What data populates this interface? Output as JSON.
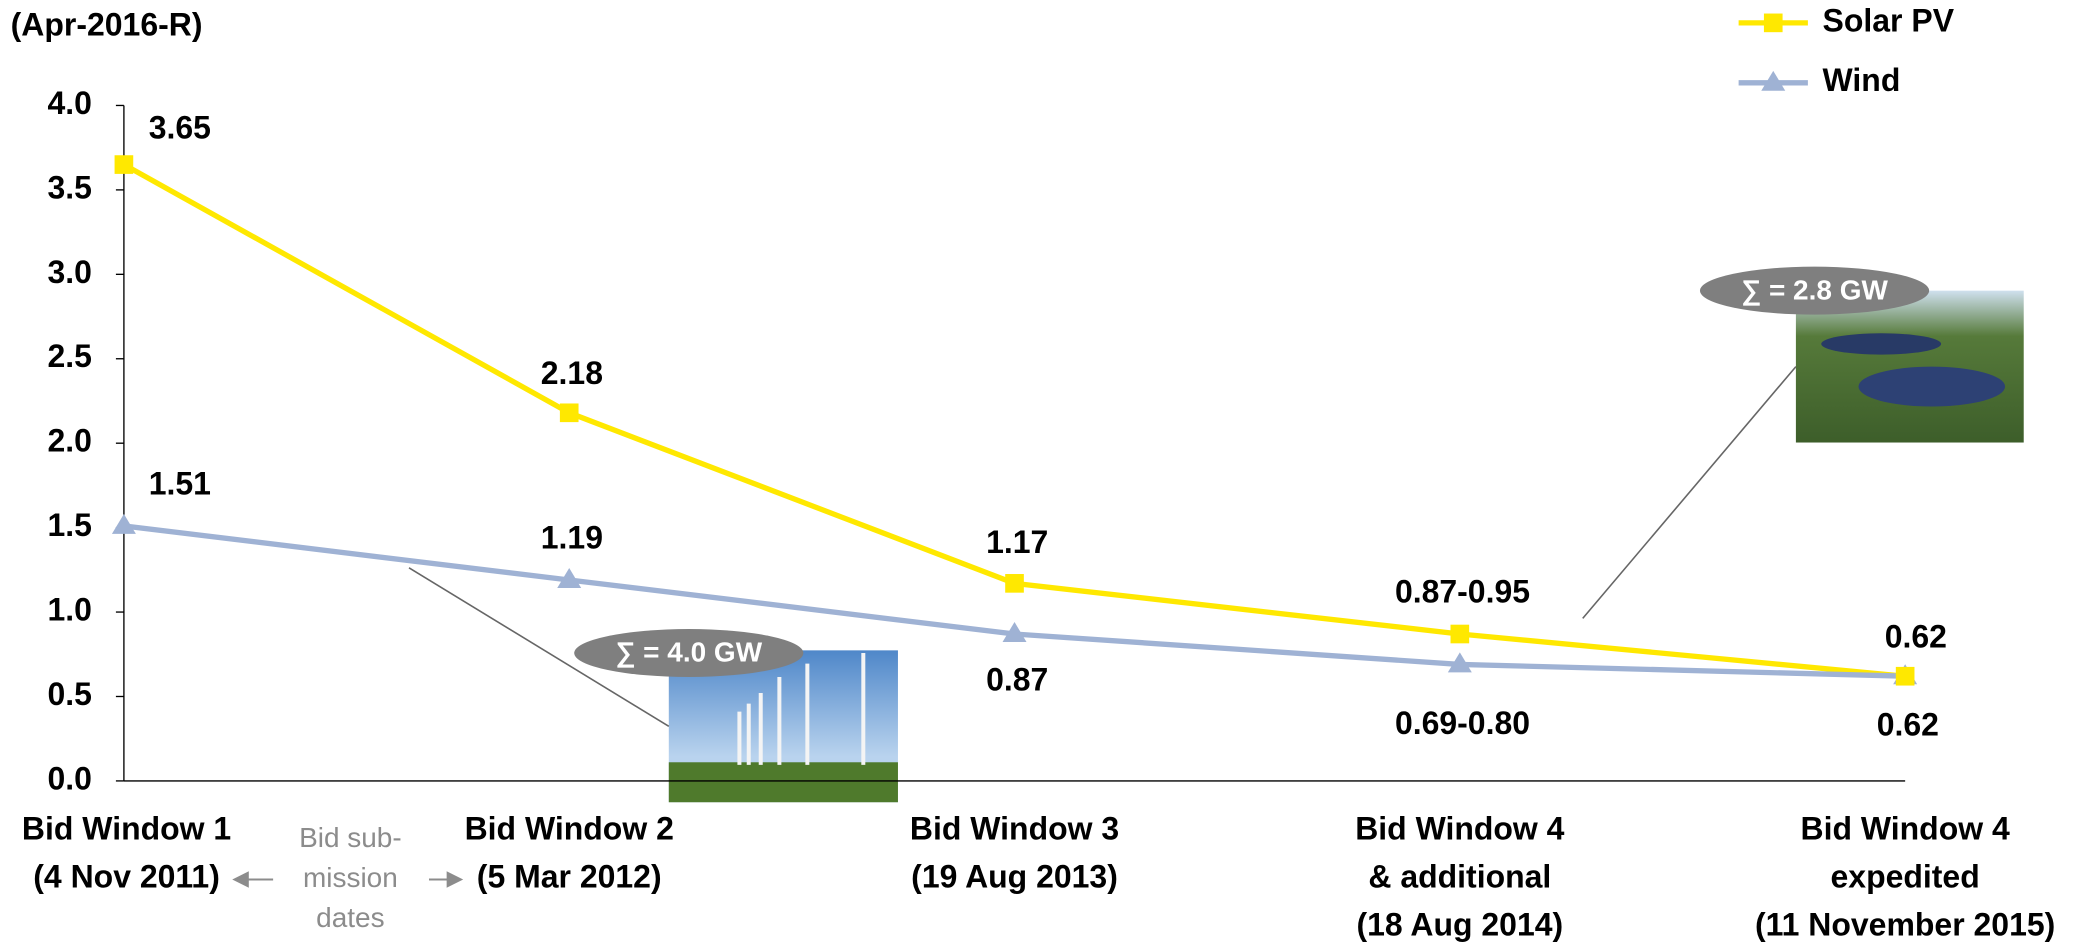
{
  "chart_data": {
    "type": "line",
    "y_label": "(Apr-2016-R)",
    "categories": [
      [
        "Bid Window 1",
        "(4 Nov 2011)"
      ],
      [
        "Bid Window 2",
        "(5 Mar 2012)"
      ],
      [
        "Bid Window 3",
        "(19 Aug 2013)"
      ],
      [
        "Bid Window 4",
        "& additional",
        "(18 Aug 2014)"
      ],
      [
        "Bid Window 4",
        "expedited",
        "(11 November 2015)"
      ]
    ],
    "series": [
      {
        "name": "Solar PV",
        "color": "#ffe800",
        "marker": "square",
        "values": [
          3.65,
          2.18,
          1.17,
          0.87,
          0.62
        ],
        "value_labels": [
          "3.65",
          "2.18",
          "1.17",
          "0.87-0.95",
          "0.62"
        ]
      },
      {
        "name": "Wind",
        "color": "#9fb2d4",
        "marker": "triangle",
        "values": [
          1.51,
          1.19,
          0.87,
          0.69,
          0.62
        ],
        "value_labels": [
          "1.51",
          "1.19",
          "0.87",
          "0.69-0.80",
          "0.62"
        ]
      }
    ],
    "ylim": [
      0,
      4
    ],
    "yticks": [
      {
        "value": 0,
        "label": "0.0"
      },
      {
        "value": 0.5,
        "label": "0.5"
      },
      {
        "value": 1,
        "label": "1.0"
      },
      {
        "value": 1.5,
        "label": "1.5"
      },
      {
        "value": 2,
        "label": "2.0"
      },
      {
        "value": 2.5,
        "label": "2.5"
      },
      {
        "value": 3,
        "label": "3.0"
      },
      {
        "value": 3.5,
        "label": "3.5"
      },
      {
        "value": 4,
        "label": "4.0"
      }
    ],
    "legend": "top-right",
    "annotations": [
      "∑ = 4.0 GW",
      "∑ = 2.8 GW"
    ],
    "bid_note": [
      "Bid sub-",
      "mission",
      "dates"
    ]
  }
}
